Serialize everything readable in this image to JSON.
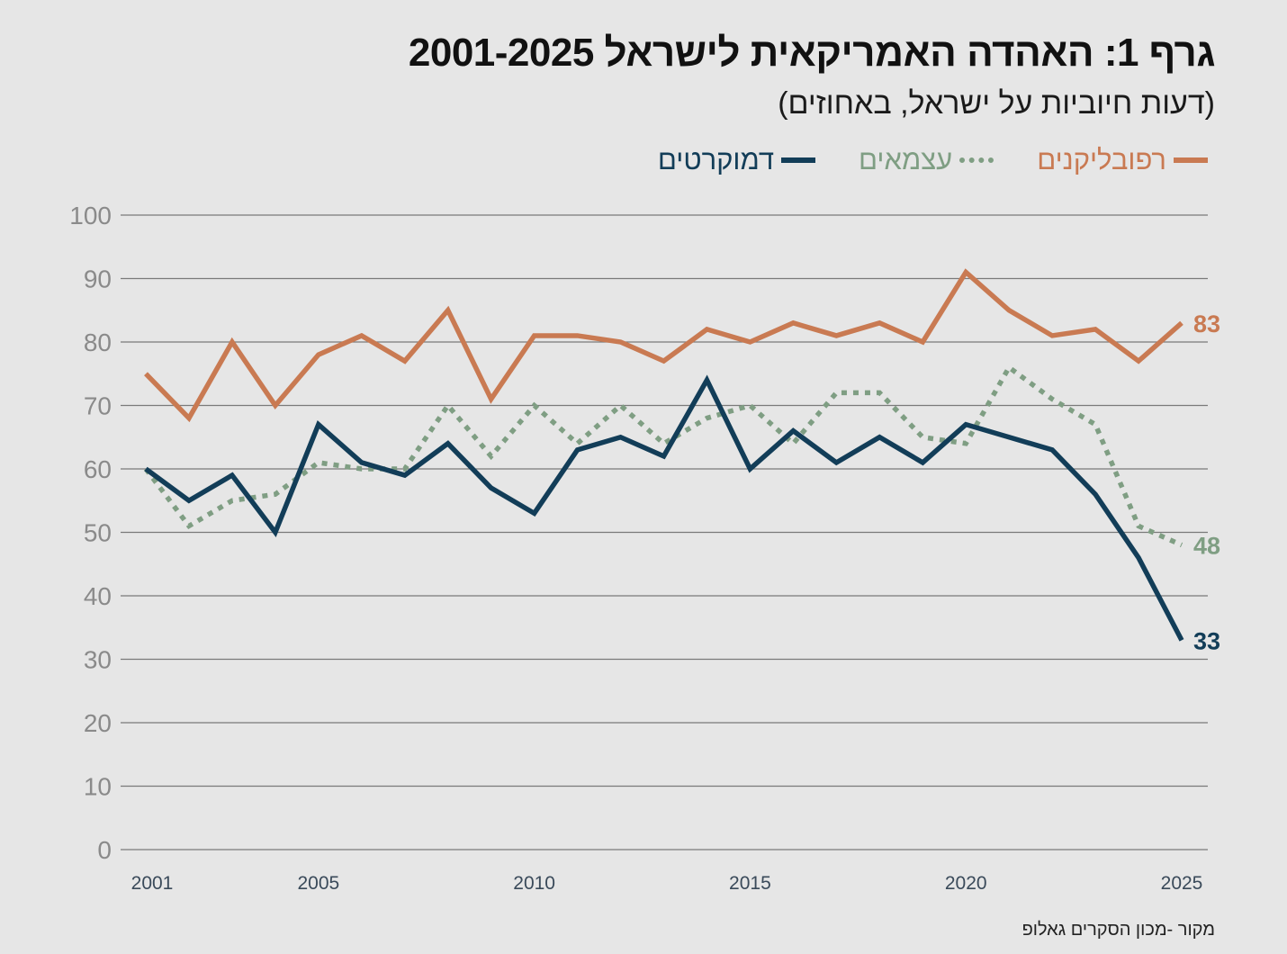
{
  "chart_data": {
    "type": "line",
    "title": "גרף 1: האהדה האמריקאית לישראל 2001-2025",
    "subtitle": "(דעות חיוביות על ישראל, באחוזים)",
    "xlabel": "",
    "ylabel": "",
    "x": [
      2001,
      2002,
      2003,
      2004,
      2005,
      2006,
      2007,
      2008,
      2009,
      2010,
      2011,
      2012,
      2013,
      2014,
      2015,
      2016,
      2017,
      2018,
      2019,
      2020,
      2021,
      2022,
      2023,
      2024,
      2025
    ],
    "x_tick_labels": [
      "2001",
      "2005",
      "2010",
      "2015",
      "2020",
      "2025"
    ],
    "x_tick_values": [
      2001,
      2005,
      2010,
      2015,
      2020,
      2025
    ],
    "y_tick_labels": [
      "0",
      "10",
      "20",
      "30",
      "40",
      "50",
      "60",
      "70",
      "80",
      "90",
      "100"
    ],
    "ylim": [
      0,
      100
    ],
    "xlim": [
      2001,
      2025
    ],
    "grid": "horizontal",
    "legend_position": "top",
    "series": [
      {
        "name": "רפובליקנים",
        "color": "#c97a52",
        "style": "solid",
        "end_label": "83",
        "values": [
          75,
          68,
          80,
          70,
          78,
          81,
          77,
          85,
          71,
          81,
          81,
          80,
          77,
          82,
          80,
          83,
          81,
          83,
          80,
          91,
          85,
          81,
          82,
          77,
          83
        ]
      },
      {
        "name": "עצמאים",
        "color": "#7f9e83",
        "style": "dotted",
        "end_label": "48",
        "values": [
          60,
          51,
          55,
          56,
          61,
          60,
          60,
          70,
          62,
          70,
          64,
          70,
          64,
          68,
          70,
          64,
          72,
          72,
          65,
          64,
          76,
          71,
          67,
          51,
          48
        ]
      },
      {
        "name": "דמוקרטים",
        "color": "#123d58",
        "style": "solid",
        "end_label": "33",
        "values": [
          60,
          55,
          59,
          50,
          67,
          61,
          59,
          64,
          57,
          53,
          63,
          65,
          62,
          74,
          60,
          66,
          61,
          65,
          61,
          67,
          65,
          63,
          56,
          46,
          33
        ]
      }
    ],
    "source": "מקור -מכון הסקרים גאלופ"
  },
  "colors": {
    "background": "#e6e6e6",
    "gridline": "#7a7a7a",
    "axis_text": "#8a8a8a",
    "year_text": "#3a4a5a"
  }
}
